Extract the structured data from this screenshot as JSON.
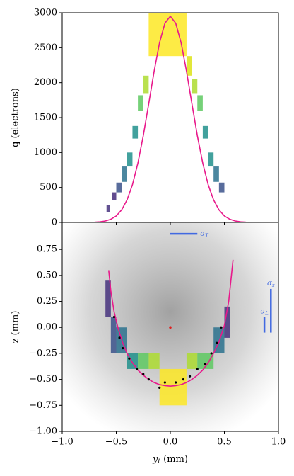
{
  "chart_data": [
    {
      "type": "block-profile",
      "y_label": "q (electrons)",
      "xlim": [
        -1.0,
        1.0
      ],
      "ylim": [
        0,
        3000
      ],
      "yticks": [
        0,
        500,
        1000,
        1500,
        2000,
        2500,
        3000
      ],
      "blocks": [
        {
          "x": [
            -0.59,
            -0.56
          ],
          "y": [
            150,
            250
          ],
          "color": "#46327e"
        },
        {
          "x": [
            -0.54,
            -0.5
          ],
          "y": [
            320,
            430
          ],
          "color": "#472d7b"
        },
        {
          "x": [
            -0.5,
            -0.45
          ],
          "y": [
            430,
            570
          ],
          "color": "#3b528b"
        },
        {
          "x": [
            -0.45,
            -0.4
          ],
          "y": [
            580,
            800
          ],
          "color": "#2c728e"
        },
        {
          "x": [
            -0.4,
            -0.35
          ],
          "y": [
            800,
            1000
          ],
          "color": "#21918c"
        },
        {
          "x": [
            -0.35,
            -0.3
          ],
          "y": [
            1200,
            1380
          ],
          "color": "#21918c"
        },
        {
          "x": [
            -0.3,
            -0.25
          ],
          "y": [
            1600,
            1820
          ],
          "color": "#5ec962"
        },
        {
          "x": [
            -0.25,
            -0.2
          ],
          "y": [
            1850,
            2100
          ],
          "color": "#addc30"
        },
        {
          "x": [
            -0.2,
            0.15
          ],
          "y": [
            2380,
            3000
          ],
          "color": "#fde725"
        },
        {
          "x": [
            0.15,
            0.2
          ],
          "y": [
            2100,
            2380
          ],
          "color": "#dde318"
        },
        {
          "x": [
            0.2,
            0.25
          ],
          "y": [
            1850,
            2050
          ],
          "color": "#addc30"
        },
        {
          "x": [
            0.25,
            0.3
          ],
          "y": [
            1600,
            1820
          ],
          "color": "#5ec962"
        },
        {
          "x": [
            0.3,
            0.35
          ],
          "y": [
            1200,
            1380
          ],
          "color": "#21918c"
        },
        {
          "x": [
            0.35,
            0.4
          ],
          "y": [
            800,
            1000
          ],
          "color": "#21918c"
        },
        {
          "x": [
            0.4,
            0.45
          ],
          "y": [
            580,
            800
          ],
          "color": "#2c728e"
        },
        {
          "x": [
            0.45,
            0.5
          ],
          "y": [
            430,
            570
          ],
          "color": "#3b528b"
        }
      ],
      "curve": {
        "color": "#e8198b",
        "x": [
          -1,
          -0.95,
          -0.9,
          -0.85,
          -0.8,
          -0.75,
          -0.7,
          -0.65,
          -0.6,
          -0.55,
          -0.5,
          -0.45,
          -0.4,
          -0.35,
          -0.3,
          -0.25,
          -0.2,
          -0.15,
          -0.1,
          -0.05,
          0,
          0.05,
          0.1,
          0.15,
          0.2,
          0.25,
          0.3,
          0.35,
          0.4,
          0.45,
          0.5,
          0.55,
          0.6,
          0.65,
          0.7,
          0.75,
          0.8,
          0.85,
          0.9,
          0.95,
          1
        ],
        "values": [
          0,
          0,
          0,
          0,
          0,
          1,
          3,
          8,
          20,
          45,
          92,
          179,
          322,
          541,
          848,
          1241,
          1695,
          2160,
          2569,
          2850,
          2950,
          2850,
          2569,
          2160,
          1695,
          1241,
          848,
          541,
          322,
          179,
          92,
          45,
          20,
          8,
          3,
          1,
          0,
          0,
          0,
          0,
          0
        ]
      }
    },
    {
      "type": "block-track",
      "x_label": {
        "var": "y",
        "sub": "t",
        "unit": " (mm)"
      },
      "y_label": "z (mm)",
      "xlim": [
        -1.0,
        1.0
      ],
      "ylim": [
        -1.0,
        1.01
      ],
      "xticks": [
        {
          "value": -1.0,
          "label": "−1.0"
        },
        {
          "value": -0.5,
          "label": "−0.5"
        },
        {
          "value": 0.0,
          "label": "0.0"
        },
        {
          "value": 0.5,
          "label": "0.5"
        },
        {
          "value": 1.0,
          "label": "1.0"
        }
      ],
      "yticks": [
        {
          "value": -1.0,
          "label": "−1.00"
        },
        {
          "value": -0.75,
          "label": "−0.75"
        },
        {
          "value": -0.5,
          "label": "−0.50"
        },
        {
          "value": -0.25,
          "label": "−0.25"
        },
        {
          "value": 0.0,
          "label": "0.00"
        },
        {
          "value": 0.25,
          "label": "0.25"
        },
        {
          "value": 0.5,
          "label": "0.50"
        },
        {
          "value": 0.75,
          "label": "0.75"
        }
      ],
      "blocks": [
        {
          "x": [
            -0.6,
            -0.55
          ],
          "y": [
            0.1,
            0.45
          ],
          "color": "#46327e"
        },
        {
          "x": [
            -0.55,
            -0.5
          ],
          "y": [
            -0.25,
            0.1
          ],
          "color": "#3b528b"
        },
        {
          "x": [
            -0.5,
            -0.4
          ],
          "y": [
            -0.25,
            0.0
          ],
          "color": "#2c728e"
        },
        {
          "x": [
            -0.4,
            -0.3
          ],
          "y": [
            -0.4,
            -0.25
          ],
          "color": "#21918c"
        },
        {
          "x": [
            -0.3,
            -0.2
          ],
          "y": [
            -0.4,
            -0.25
          ],
          "color": "#5ec962"
        },
        {
          "x": [
            -0.2,
            -0.1
          ],
          "y": [
            -0.4,
            -0.25
          ],
          "color": "#addc30"
        },
        {
          "x": [
            -0.1,
            0.15
          ],
          "y": [
            -0.75,
            -0.4
          ],
          "color": "#fde725"
        },
        {
          "x": [
            0.15,
            0.25
          ],
          "y": [
            -0.4,
            -0.25
          ],
          "color": "#addc30"
        },
        {
          "x": [
            0.25,
            0.4
          ],
          "y": [
            -0.4,
            -0.25
          ],
          "color": "#5ec962"
        },
        {
          "x": [
            0.4,
            0.5
          ],
          "y": [
            -0.25,
            0.0
          ],
          "color": "#2c728e"
        },
        {
          "x": [
            0.5,
            0.55
          ],
          "y": [
            -0.1,
            0.2
          ],
          "color": "#46327e"
        }
      ],
      "curve": {
        "color": "#e8198b",
        "x": [
          -0.57,
          -0.55,
          -0.52,
          -0.48,
          -0.44,
          -0.4,
          -0.35,
          -0.3,
          -0.25,
          -0.2,
          -0.15,
          -0.1,
          -0.05,
          0,
          0.05,
          0.1,
          0.15,
          0.2,
          0.25,
          0.3,
          0.35,
          0.4,
          0.45,
          0.5,
          0.54,
          0.56,
          0.58
        ],
        "values": [
          0.55,
          0.35,
          0.15,
          -0.02,
          -0.15,
          -0.25,
          -0.34,
          -0.41,
          -0.46,
          -0.5,
          -0.53,
          -0.55,
          -0.56,
          -0.565,
          -0.56,
          -0.55,
          -0.53,
          -0.5,
          -0.46,
          -0.41,
          -0.34,
          -0.25,
          -0.14,
          0.02,
          0.25,
          0.45,
          0.65
        ]
      },
      "points": {
        "color": "#000000",
        "x": [
          -0.52,
          -0.47,
          -0.44,
          -0.38,
          -0.31,
          -0.25,
          -0.2,
          -0.1,
          -0.05,
          0.05,
          0.12,
          0.18,
          0.25,
          0.32,
          0.38,
          0.43,
          0.47
        ],
        "values": [
          0.1,
          -0.1,
          -0.2,
          -0.3,
          -0.4,
          -0.45,
          -0.5,
          -0.58,
          -0.53,
          -0.53,
          -0.5,
          -0.47,
          -0.4,
          -0.35,
          -0.25,
          -0.15,
          0.0
        ]
      },
      "centroid": {
        "color": "#e02020",
        "x": [
          0
        ],
        "values": [
          0
        ]
      },
      "annotations": [
        {
          "label": {
            "symbol": "σ",
            "sub": "T"
          },
          "x": [
            0,
            0.25
          ],
          "y": [
            0.9,
            0.9
          ],
          "color": "#4169e1"
        },
        {
          "label": {
            "symbol": "σ",
            "sub": "L"
          },
          "x": [
            0.87,
            0.87
          ],
          "y": [
            -0.05,
            0.1
          ],
          "color": "#4169e1"
        },
        {
          "label": {
            "symbol": "σ",
            "sub": "z"
          },
          "x": [
            0.93,
            0.93
          ],
          "y": [
            -0.05,
            0.37
          ],
          "color": "#4169e1"
        }
      ]
    }
  ]
}
